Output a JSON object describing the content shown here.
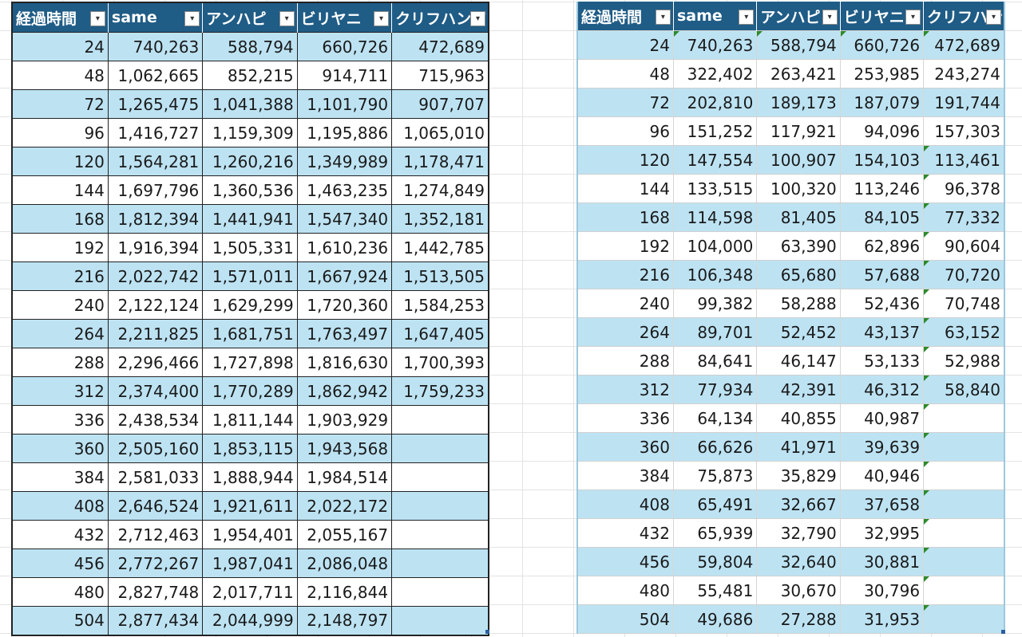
{
  "left_table": {
    "headers": [
      "経過時間",
      "same",
      "アンハピ",
      "ビリヤニ",
      "クリフハンガ"
    ],
    "rows": [
      [
        "24",
        "740,263",
        "588,794",
        "660,726",
        "472,689"
      ],
      [
        "48",
        "1,062,665",
        "852,215",
        "914,711",
        "715,963"
      ],
      [
        "72",
        "1,265,475",
        "1,041,388",
        "1,101,790",
        "907,707"
      ],
      [
        "96",
        "1,416,727",
        "1,159,309",
        "1,195,886",
        "1,065,010"
      ],
      [
        "120",
        "1,564,281",
        "1,260,216",
        "1,349,989",
        "1,178,471"
      ],
      [
        "144",
        "1,697,796",
        "1,360,536",
        "1,463,235",
        "1,274,849"
      ],
      [
        "168",
        "1,812,394",
        "1,441,941",
        "1,547,340",
        "1,352,181"
      ],
      [
        "192",
        "1,916,394",
        "1,505,331",
        "1,610,236",
        "1,442,785"
      ],
      [
        "216",
        "2,022,742",
        "1,571,011",
        "1,667,924",
        "1,513,505"
      ],
      [
        "240",
        "2,122,124",
        "1,629,299",
        "1,720,360",
        "1,584,253"
      ],
      [
        "264",
        "2,211,825",
        "1,681,751",
        "1,763,497",
        "1,647,405"
      ],
      [
        "288",
        "2,296,466",
        "1,727,898",
        "1,816,630",
        "1,700,393"
      ],
      [
        "312",
        "2,374,400",
        "1,770,289",
        "1,862,942",
        "1,759,233"
      ],
      [
        "336",
        "2,438,534",
        "1,811,144",
        "1,903,929",
        ""
      ],
      [
        "360",
        "2,505,160",
        "1,853,115",
        "1,943,568",
        ""
      ],
      [
        "384",
        "2,581,033",
        "1,888,944",
        "1,984,514",
        ""
      ],
      [
        "408",
        "2,646,524",
        "1,921,611",
        "2,022,172",
        ""
      ],
      [
        "432",
        "2,712,463",
        "1,954,401",
        "2,055,167",
        ""
      ],
      [
        "456",
        "2,772,267",
        "1,987,041",
        "2,086,048",
        ""
      ],
      [
        "480",
        "2,827,748",
        "2,017,711",
        "2,116,844",
        ""
      ],
      [
        "504",
        "2,877,434",
        "2,044,999",
        "2,148,797",
        ""
      ]
    ]
  },
  "right_table": {
    "headers": [
      "経過時間",
      "same",
      "アンハピ",
      "ビリヤニ",
      "クリフハンガ"
    ],
    "rows": [
      [
        "24",
        "740,263",
        "588,794",
        "660,726",
        "472,689"
      ],
      [
        "48",
        "322,402",
        "263,421",
        "253,985",
        "243,274"
      ],
      [
        "72",
        "202,810",
        "189,173",
        "187,079",
        "191,744"
      ],
      [
        "96",
        "151,252",
        "117,921",
        "94,096",
        "157,303"
      ],
      [
        "120",
        "147,554",
        "100,907",
        "154,103",
        "113,461"
      ],
      [
        "144",
        "133,515",
        "100,320",
        "113,246",
        "96,378"
      ],
      [
        "168",
        "114,598",
        "81,405",
        "84,105",
        "77,332"
      ],
      [
        "192",
        "104,000",
        "63,390",
        "62,896",
        "90,604"
      ],
      [
        "216",
        "106,348",
        "65,680",
        "57,688",
        "70,720"
      ],
      [
        "240",
        "99,382",
        "58,288",
        "52,436",
        "70,748"
      ],
      [
        "264",
        "89,701",
        "52,452",
        "43,137",
        "63,152"
      ],
      [
        "288",
        "84,641",
        "46,147",
        "53,133",
        "52,988"
      ],
      [
        "312",
        "77,934",
        "42,391",
        "46,312",
        "58,840"
      ],
      [
        "336",
        "64,134",
        "40,855",
        "40,987",
        ""
      ],
      [
        "360",
        "66,626",
        "41,971",
        "39,639",
        ""
      ],
      [
        "384",
        "75,873",
        "35,829",
        "40,946",
        ""
      ],
      [
        "408",
        "65,491",
        "32,667",
        "37,658",
        ""
      ],
      [
        "432",
        "65,939",
        "32,790",
        "32,995",
        ""
      ],
      [
        "456",
        "59,804",
        "32,640",
        "30,881",
        ""
      ],
      [
        "480",
        "55,481",
        "30,670",
        "30,796",
        ""
      ],
      [
        "504",
        "49,686",
        "27,288",
        "31,953",
        ""
      ]
    ]
  },
  "filter_icon": "▾",
  "colors": {
    "header_bg": "#1f5c86",
    "band_bg": "#bde3f3",
    "error_flag": "#2c8a2c"
  }
}
